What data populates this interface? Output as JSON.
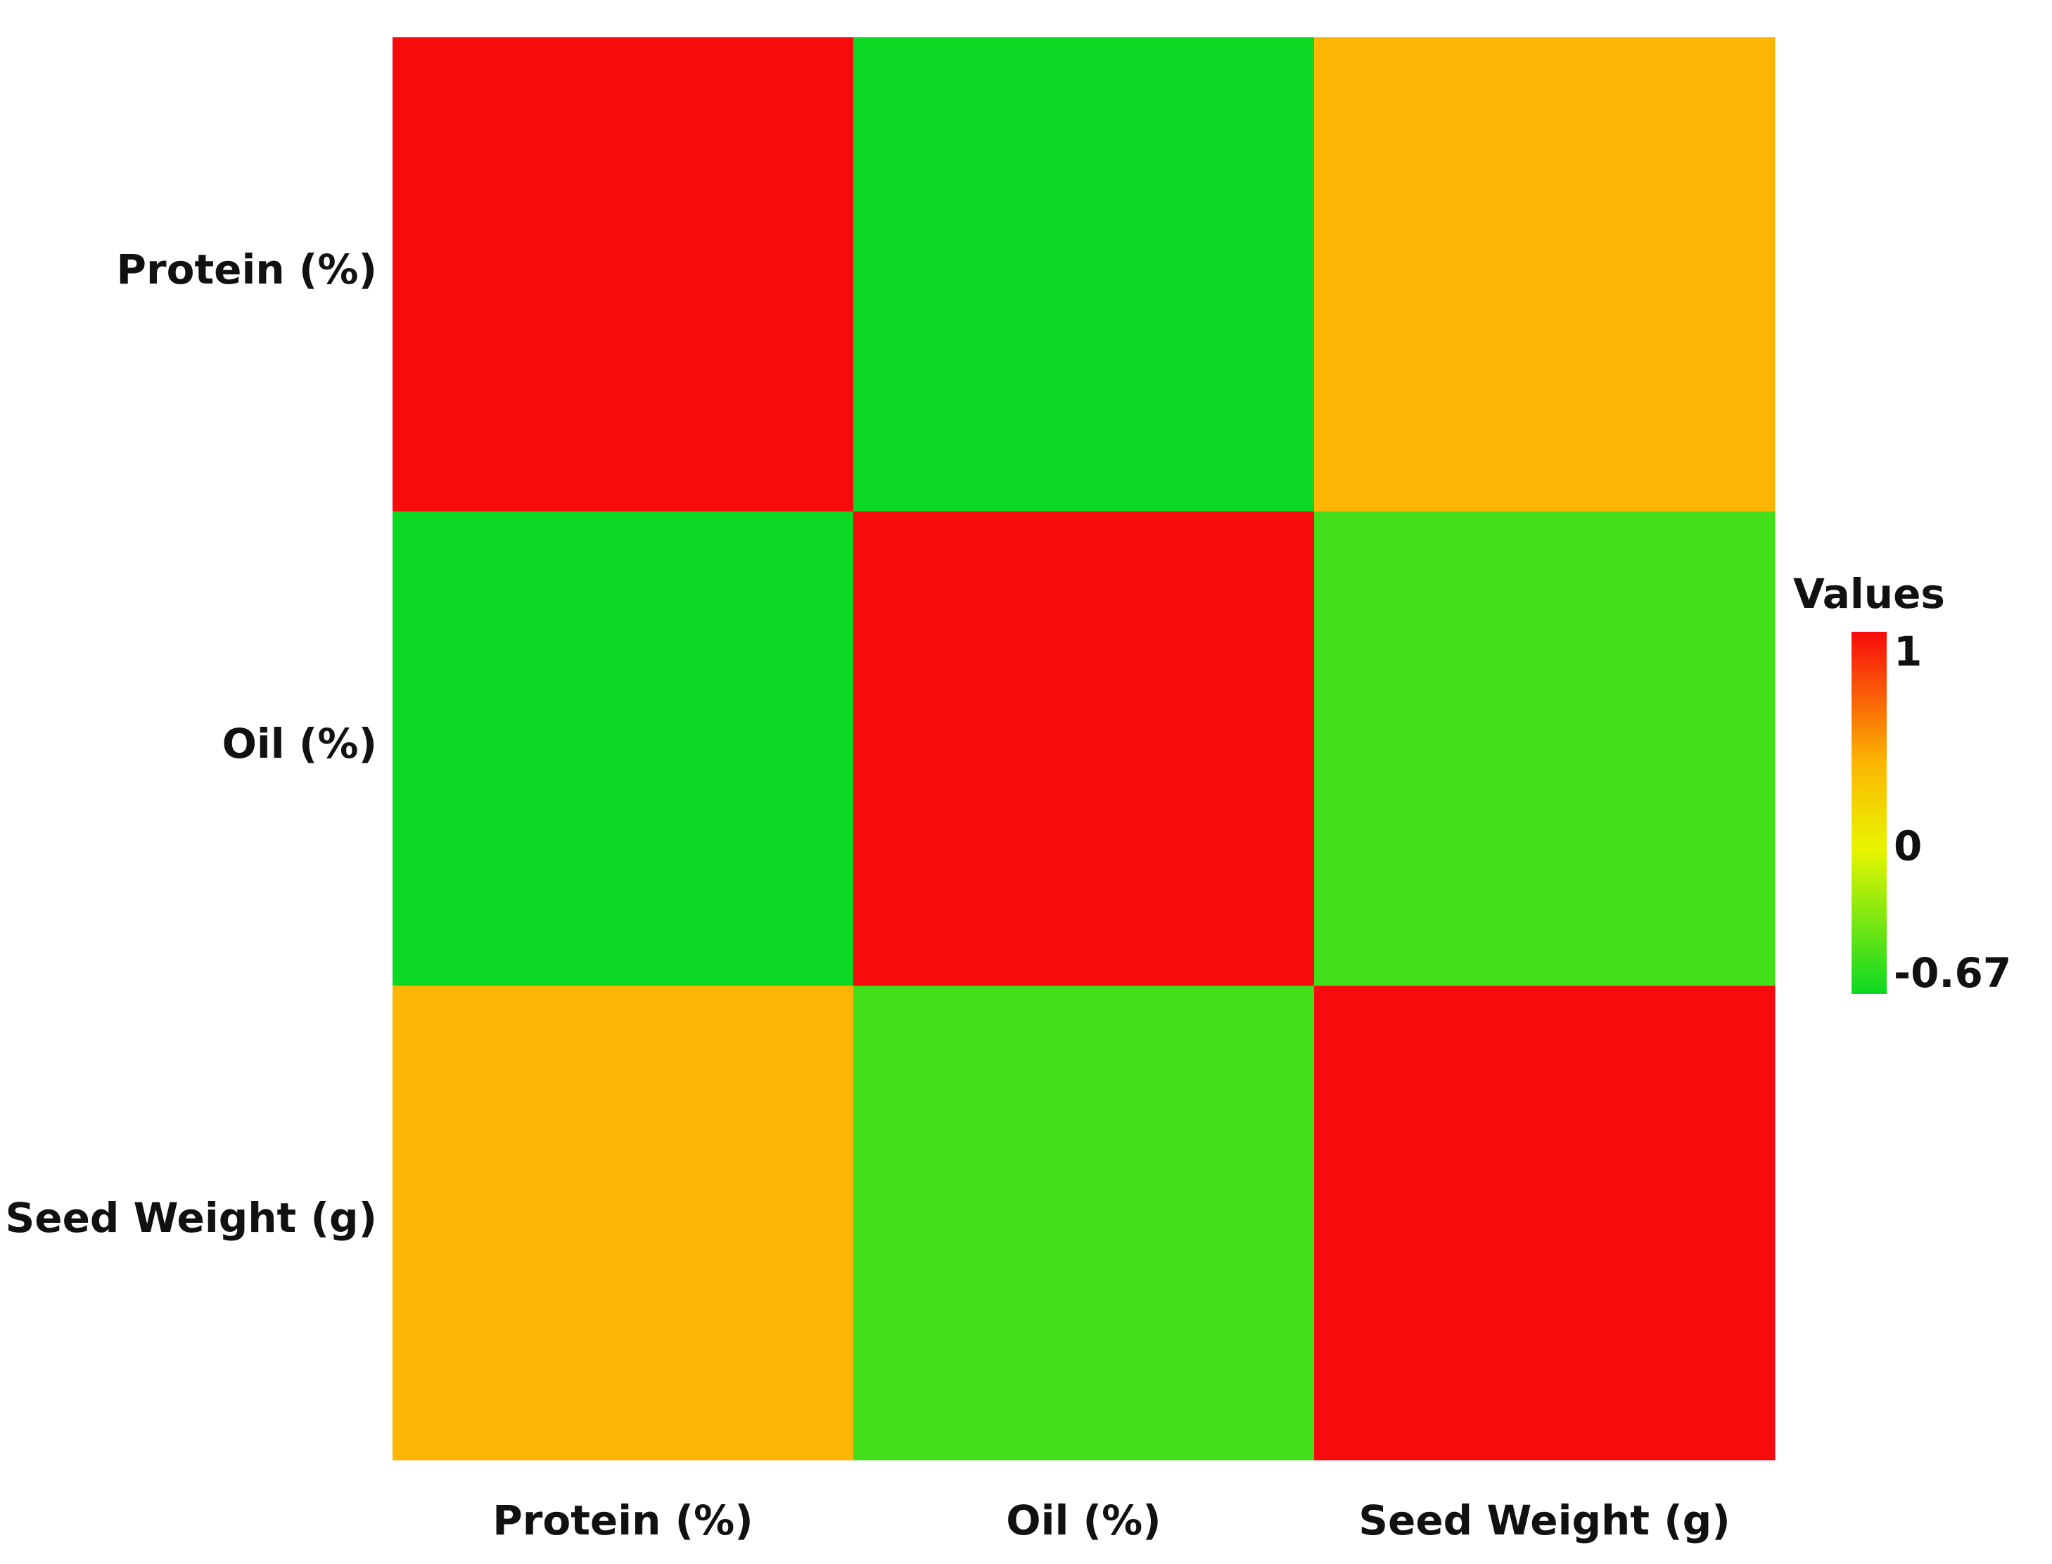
{
  "chart_data": {
    "type": "heatmap",
    "x_categories": [
      "Protein (%)",
      "Oil (%)",
      "Seed Weight (g)"
    ],
    "y_categories": [
      "Protein (%)",
      "Oil (%)",
      "Seed Weight (g)"
    ],
    "values": [
      [
        1.0,
        -0.67,
        0.4
      ],
      [
        -0.67,
        1.0,
        -0.5
      ],
      [
        0.4,
        -0.5,
        1.0
      ]
    ],
    "legend": {
      "title": "Values",
      "min": -0.67,
      "max": 1,
      "ticks": [
        {
          "value": 1,
          "label": "1"
        },
        {
          "value": 0,
          "label": "0"
        },
        {
          "value": -0.67,
          "label": "-0.67"
        }
      ],
      "placement": "right"
    },
    "colorscale": [
      {
        "value": -0.67,
        "color": "#0bd823"
      },
      {
        "value": 0,
        "color": "#e9f500"
      },
      {
        "value": 0.4,
        "color": "#fbb502"
      },
      {
        "value": 1,
        "color": "#f80b0c"
      }
    ]
  }
}
